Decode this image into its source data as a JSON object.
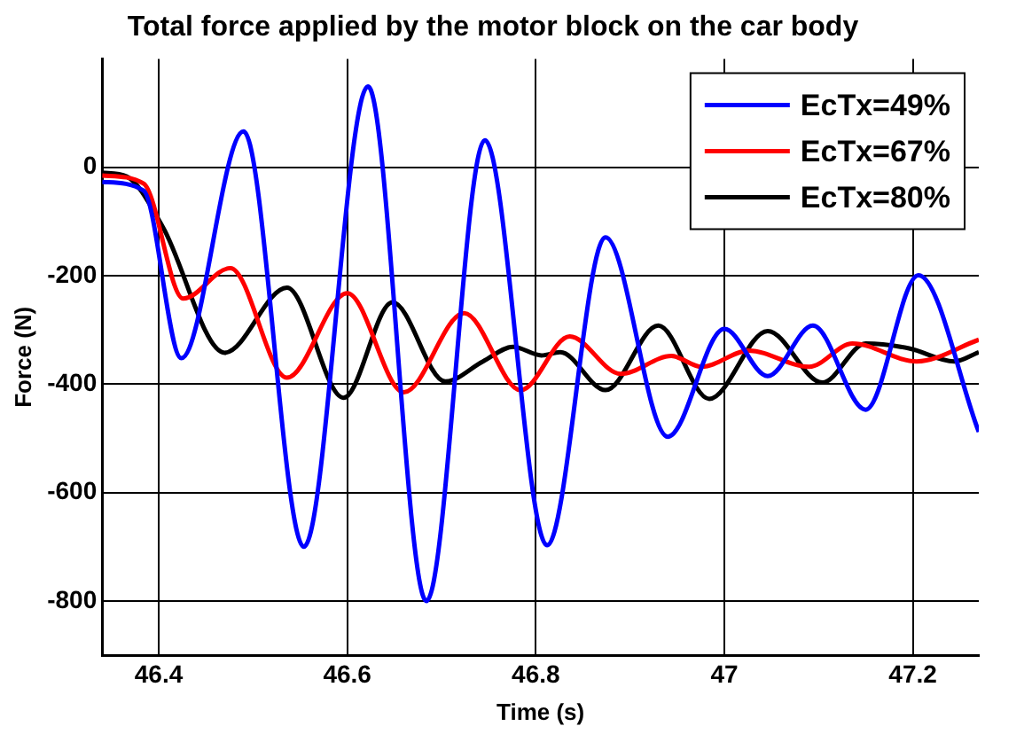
{
  "chart_data": {
    "type": "line",
    "title": "Total force applied by the motor block on the car body",
    "xlabel": "Time (s)",
    "ylabel": "Force (N)",
    "xlim": [
      46.34,
      47.27
    ],
    "xticks": [
      46.4,
      46.6,
      46.8,
      47,
      47.2
    ],
    "ylim": [
      -900,
      200
    ],
    "yticks": [
      -800,
      -600,
      -400,
      -200,
      0
    ],
    "grid": true,
    "legend": "top right",
    "marker": "none",
    "line_style": "solid",
    "series": [
      {
        "name": "EcTx=49%",
        "color": "#0000ff",
        "x": [
          46.34,
          46.384,
          46.424,
          46.49,
          46.554,
          46.622,
          46.684,
          46.746,
          46.812,
          46.874,
          46.94,
          47.0,
          47.046,
          47.094,
          47.15,
          47.206,
          47.27
        ],
        "values": [
          -27,
          -43,
          -352,
          66,
          -700,
          149,
          -800,
          50,
          -697,
          -129,
          -497,
          -298,
          -385,
          -292,
          -447,
          -199,
          -488
        ]
      },
      {
        "name": "EcTx=67%",
        "color": "#ff0000",
        "x": [
          46.34,
          46.384,
          46.426,
          46.476,
          46.536,
          46.6,
          46.66,
          46.724,
          46.784,
          46.836,
          46.89,
          46.944,
          46.976,
          47.026,
          47.09,
          47.136,
          47.204,
          47.27
        ],
        "values": [
          -15,
          -30,
          -242,
          -186,
          -388,
          -232,
          -415,
          -269,
          -411,
          -312,
          -381,
          -348,
          -368,
          -338,
          -368,
          -325,
          -358,
          -318
        ]
      },
      {
        "name": "EcTx=80%",
        "color": "#000000",
        "x": [
          46.34,
          46.366,
          46.404,
          46.47,
          46.536,
          46.596,
          46.648,
          46.704,
          46.744,
          46.776,
          46.806,
          46.826,
          46.874,
          46.93,
          46.984,
          47.046,
          47.104,
          47.15,
          47.196,
          47.244,
          47.27
        ],
        "values": [
          -10,
          -17,
          -109,
          -342,
          -222,
          -425,
          -249,
          -395,
          -358,
          -331,
          -347,
          -341,
          -411,
          -292,
          -427,
          -302,
          -397,
          -325,
          -334,
          -358,
          -341
        ]
      }
    ]
  }
}
